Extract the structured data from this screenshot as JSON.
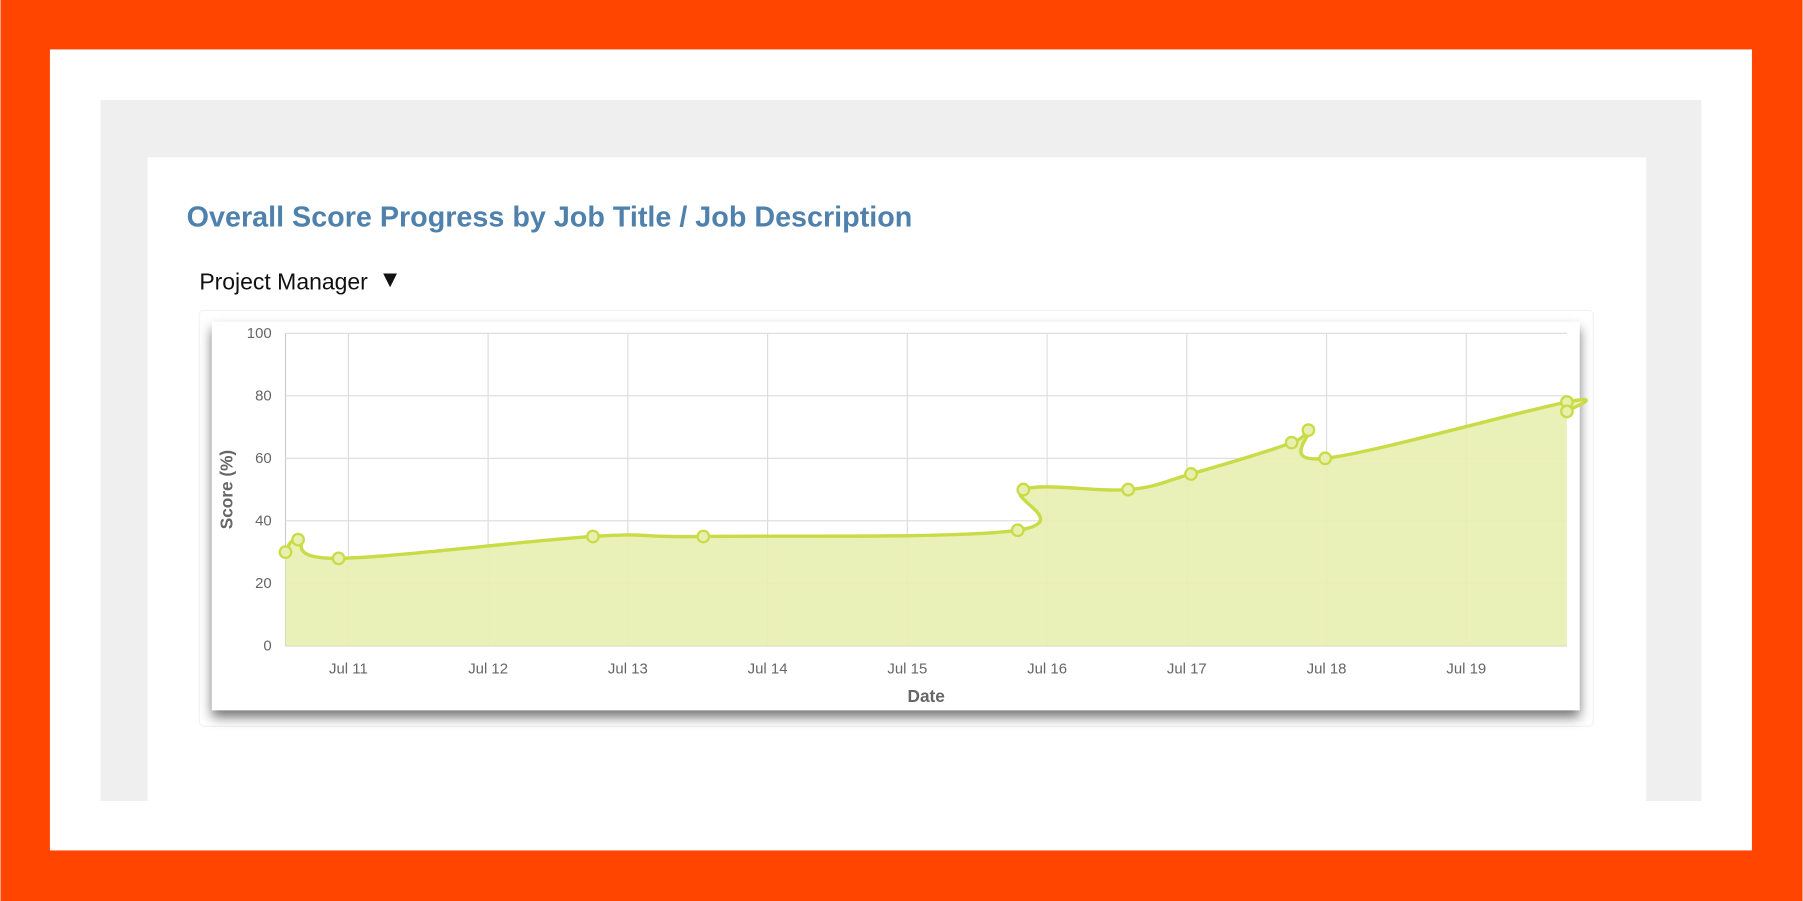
{
  "header": {
    "title": "Overall Score Progress by Job Title / Job Description"
  },
  "dropdown": {
    "label": "Project Manager"
  },
  "chart_data": {
    "type": "area",
    "xlabel": "Date",
    "ylabel": "Score (%)",
    "x": [
      10.55,
      10.64,
      10.93,
      12.75,
      13.54,
      15.79,
      15.83,
      16.58,
      17.03,
      17.75,
      17.87,
      17.99,
      19.72,
      19.72
    ],
    "values": [
      30,
      34,
      28,
      35,
      35,
      37,
      50,
      50,
      55,
      65,
      69,
      60,
      78,
      75
    ],
    "color": "#c9dc47",
    "fill": "#e8efb0",
    "xlim": [
      10.55,
      19.72
    ],
    "ylim": [
      0,
      100
    ],
    "xticks": [
      {
        "value": 11,
        "label": "Jul 11"
      },
      {
        "value": 12,
        "label": "Jul 12"
      },
      {
        "value": 13,
        "label": "Jul 13"
      },
      {
        "value": 14,
        "label": "Jul 14"
      },
      {
        "value": 15,
        "label": "Jul 15"
      },
      {
        "value": 16,
        "label": "Jul 16"
      },
      {
        "value": 17,
        "label": "Jul 17"
      },
      {
        "value": 18,
        "label": "Jul 18"
      },
      {
        "value": 19,
        "label": "Jul 19"
      }
    ],
    "yticks": [
      0,
      20,
      40,
      60,
      80,
      100
    ],
    "grid": true
  }
}
